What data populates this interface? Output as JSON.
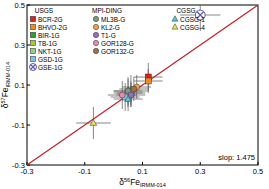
{
  "chart_data": {
    "type": "scatter",
    "xlabel": "δ56FeIRMM-014",
    "ylabel": "δ57FeIRMM-014",
    "xlim": [
      -0.3,
      0.5
    ],
    "ylim": [
      -0.3,
      0.5
    ],
    "xticks": [
      -0.3,
      -0.1,
      0.1,
      0.3,
      0.5
    ],
    "yticks": [
      -0.3,
      -0.1,
      0.1,
      0.3,
      0.5
    ],
    "annotation": "slop: 1.475",
    "reference_line": {
      "x": [
        -0.3,
        0.5
      ],
      "y": [
        -0.3,
        0.5
      ],
      "color": "#c0202a"
    },
    "legend": "upper left",
    "legend_groups": [
      "USGS",
      "MPI-DING",
      "CGSG"
    ],
    "series": [
      {
        "name": "BCR-2G",
        "group": "USGS",
        "color": "#e02020",
        "marker": "square",
        "x": [
          0.12
        ],
        "values": [
          0.14
        ],
        "xerr": [
          0.05
        ],
        "yerr": [
          0.07
        ]
      },
      {
        "name": "BHVO-2G",
        "group": "USGS",
        "color": "#f08a1c",
        "marker": "square",
        "x": [
          0.12
        ],
        "values": [
          0.12
        ],
        "xerr": [
          0.05
        ],
        "yerr": [
          0.06
        ]
      },
      {
        "name": "BIR-1G",
        "group": "USGS",
        "color": "#2e9e3a",
        "marker": "square",
        "x": [
          0.06
        ],
        "values": [
          0.07
        ],
        "xerr": [
          0.06
        ],
        "yerr": [
          0.08
        ]
      },
      {
        "name": "TB-1G",
        "group": "USGS",
        "color": "#a8c83a",
        "marker": "square",
        "x": [
          0.05
        ],
        "values": [
          0.06
        ],
        "xerr": [
          0.05
        ],
        "yerr": [
          0.07
        ]
      },
      {
        "name": "NKT-1G",
        "group": "USGS",
        "color": "#8fd18a",
        "marker": "square",
        "x": [
          0.06
        ],
        "values": [
          0.06
        ],
        "xerr": [
          0.05
        ],
        "yerr": [
          0.06
        ]
      },
      {
        "name": "GSD-1G",
        "group": "USGS",
        "color": "#7fc4e8",
        "marker": "square",
        "x": [
          0.04
        ],
        "values": [
          0.04
        ],
        "xerr": [
          0.05
        ],
        "yerr": [
          0.07
        ]
      },
      {
        "name": "GSE-1G",
        "group": "USGS",
        "color": "#5a5ab4",
        "marker": "x",
        "x": [
          0.3
        ],
        "values": [
          0.45
        ],
        "xerr": [
          0.07
        ],
        "yerr": [
          0.08
        ]
      },
      {
        "name": "ML3B-G",
        "group": "MPI-DING",
        "color": "#7a9a7a",
        "marker": "circle",
        "x": [
          0.05
        ],
        "values": [
          0.07
        ],
        "xerr": [
          0.05
        ],
        "yerr": [
          0.07
        ]
      },
      {
        "name": "KL2-G",
        "group": "MPI-DING",
        "color": "#f0a040",
        "marker": "circle",
        "x": [
          0.08
        ],
        "values": [
          0.09
        ],
        "xerr": [
          0.05
        ],
        "yerr": [
          0.06
        ]
      },
      {
        "name": "T1-G",
        "group": "MPI-DING",
        "color": "#9a6ac8",
        "marker": "circle",
        "x": [
          0.06
        ],
        "values": [
          0.05
        ],
        "xerr": [
          0.05
        ],
        "yerr": [
          0.06
        ]
      },
      {
        "name": "GOR128-G",
        "group": "MPI-DING",
        "color": "#e88ab0",
        "marker": "circle",
        "x": [
          0.03
        ],
        "values": [
          0.05
        ],
        "xerr": [
          0.05
        ],
        "yerr": [
          0.07
        ]
      },
      {
        "name": "GOR132-G",
        "group": "MPI-DING",
        "color": "#a0704a",
        "marker": "circle",
        "x": [
          0.07
        ],
        "values": [
          0.08
        ],
        "xerr": [
          0.05
        ],
        "yerr": [
          0.06
        ]
      },
      {
        "name": "CGSG-1",
        "group": "CGSG",
        "color": "#50c8d8",
        "marker": "triangle",
        "x": [
          0.05
        ],
        "values": [
          0.03
        ],
        "xerr": [
          0.05
        ],
        "yerr": [
          0.06
        ]
      },
      {
        "name": "CGSG-4",
        "group": "CGSG",
        "color": "#e8e050",
        "marker": "triangle",
        "x": [
          -0.07
        ],
        "values": [
          -0.09
        ],
        "xerr": [
          0.06
        ],
        "yerr": [
          0.08
        ]
      }
    ]
  }
}
